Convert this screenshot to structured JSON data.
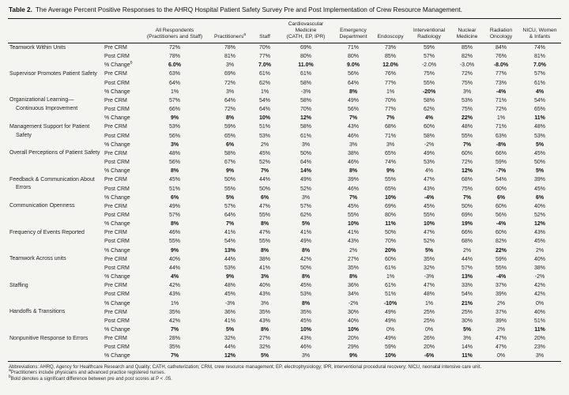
{
  "title": {
    "label": "Table 2.",
    "caption": "The Average Percent Positive Responses to the AHRQ Hospital Patient Safety Survey Pre and Post Implementation of Crew Resource Management."
  },
  "chart_data": {
    "type": "table",
    "columns": [
      {
        "lines": [
          "All Respondents",
          "(Practitioners and Staff)"
        ]
      },
      {
        "lines": [
          "Practitioners"
        ],
        "sup": "a"
      },
      {
        "lines": [
          "Staff"
        ]
      },
      {
        "lines": [
          "Cardiovascular Medicine",
          "(CATH, EP, IPR)"
        ]
      },
      {
        "lines": [
          "Emergency",
          "Department"
        ]
      },
      {
        "lines": [
          "Endoscopy"
        ]
      },
      {
        "lines": [
          "Interventional",
          "Radiology"
        ]
      },
      {
        "lines": [
          "Nuclear",
          "Medicine"
        ]
      },
      {
        "lines": [
          "Radiation",
          "Oncology"
        ]
      },
      {
        "lines": [
          "NICU, Women",
          "& Infants"
        ]
      }
    ],
    "groups": [
      {
        "category": "Teamwork Within Units",
        "rows": [
          {
            "measure": "Pre CRM",
            "values": [
              "72%",
              "78%",
              "70%",
              "69%",
              "71%",
              "73%",
              "59%",
              "85%",
              "84%",
              "74%"
            ]
          },
          {
            "measure": "Post CRM",
            "values": [
              "78%",
              "81%",
              "77%",
              "80%",
              "80%",
              "85%",
              "57%",
              "82%",
              "76%",
              "81%"
            ]
          },
          {
            "measure": "% Change",
            "measure_sup": "b",
            "values": [
              "6.0%",
              "3%",
              "7.0%",
              "11.0%",
              "9.0%",
              "12.0%",
              "-2.0%",
              "-3.0%",
              "-8.0%",
              "7.0%"
            ],
            "bold": [
              1,
              0,
              1,
              1,
              1,
              1,
              0,
              0,
              1,
              1
            ]
          }
        ]
      },
      {
        "category": "Supervisor Promotes Patient Safety",
        "rows": [
          {
            "measure": "Pre CRM",
            "values": [
              "63%",
              "69%",
              "61%",
              "61%",
              "56%",
              "76%",
              "75%",
              "72%",
              "77%",
              "57%"
            ]
          },
          {
            "measure": "Post CRM",
            "values": [
              "64%",
              "72%",
              "62%",
              "58%",
              "64%",
              "77%",
              "55%",
              "75%",
              "73%",
              "61%"
            ]
          },
          {
            "measure": "% Change",
            "values": [
              "1%",
              "3%",
              "1%",
              "-3%",
              "8%",
              "1%",
              "-20%",
              "3%",
              "-4%",
              "4%"
            ],
            "bold": [
              0,
              0,
              0,
              0,
              1,
              0,
              1,
              0,
              1,
              1
            ]
          }
        ]
      },
      {
        "category": "Organizational Learning—Continuous Improvement",
        "rows": [
          {
            "measure": "Pre CRM",
            "values": [
              "57%",
              "64%",
              "54%",
              "58%",
              "49%",
              "70%",
              "58%",
              "53%",
              "71%",
              "54%"
            ]
          },
          {
            "measure": "Post CRM",
            "values": [
              "66%",
              "72%",
              "64%",
              "70%",
              "56%",
              "77%",
              "62%",
              "75%",
              "72%",
              "65%"
            ]
          },
          {
            "measure": "% Change",
            "values": [
              "9%",
              "8%",
              "10%",
              "12%",
              "7%",
              "7%",
              "4%",
              "22%",
              "1%",
              "11%"
            ],
            "bold": [
              1,
              1,
              1,
              1,
              1,
              1,
              1,
              1,
              0,
              1
            ]
          }
        ]
      },
      {
        "category": "Management Support for Patient Safety",
        "rows": [
          {
            "measure": "Pre CRM",
            "values": [
              "53%",
              "59%",
              "51%",
              "58%",
              "43%",
              "68%",
              "60%",
              "48%",
              "71%",
              "48%"
            ]
          },
          {
            "measure": "Post CRM",
            "values": [
              "56%",
              "65%",
              "53%",
              "61%",
              "46%",
              "71%",
              "58%",
              "55%",
              "63%",
              "53%"
            ]
          },
          {
            "measure": "% Change",
            "values": [
              "3%",
              "6%",
              "2%",
              "3%",
              "3%",
              "3%",
              "-2%",
              "7%",
              "-8%",
              "5%"
            ],
            "bold": [
              1,
              1,
              0,
              0,
              0,
              0,
              0,
              1,
              1,
              1
            ]
          }
        ]
      },
      {
        "category": "Overall Perceptions of Patient Safety",
        "rows": [
          {
            "measure": "Pre CRM",
            "values": [
              "48%",
              "58%",
              "45%",
              "50%",
              "38%",
              "65%",
              "49%",
              "60%",
              "66%",
              "45%"
            ]
          },
          {
            "measure": "Post CRM",
            "values": [
              "56%",
              "67%",
              "52%",
              "64%",
              "46%",
              "74%",
              "53%",
              "72%",
              "59%",
              "50%"
            ]
          },
          {
            "measure": "% Change",
            "values": [
              "8%",
              "9%",
              "7%",
              "14%",
              "8%",
              "9%",
              "4%",
              "12%",
              "-7%",
              "5%"
            ],
            "bold": [
              1,
              1,
              1,
              1,
              1,
              1,
              0,
              1,
              1,
              1
            ]
          }
        ]
      },
      {
        "category": "Feedback & Communication About Errors",
        "rows": [
          {
            "measure": "Pre CRM",
            "values": [
              "45%",
              "50%",
              "44%",
              "49%",
              "39%",
              "55%",
              "47%",
              "68%",
              "54%",
              "39%"
            ]
          },
          {
            "measure": "Post CRM",
            "values": [
              "51%",
              "55%",
              "50%",
              "52%",
              "46%",
              "65%",
              "43%",
              "75%",
              "60%",
              "45%"
            ]
          },
          {
            "measure": "% Change",
            "values": [
              "6%",
              "5%",
              "6%",
              "3%",
              "7%",
              "10%",
              "-4%",
              "7%",
              "6%",
              "6%"
            ],
            "bold": [
              1,
              1,
              1,
              0,
              1,
              1,
              1,
              1,
              1,
              1
            ]
          }
        ]
      },
      {
        "category": "Communication Openness",
        "rows": [
          {
            "measure": "Pre CRM",
            "values": [
              "49%",
              "57%",
              "47%",
              "57%",
              "45%",
              "69%",
              "45%",
              "50%",
              "60%",
              "40%"
            ]
          },
          {
            "measure": "Post CRM",
            "values": [
              "57%",
              "64%",
              "55%",
              "62%",
              "55%",
              "80%",
              "55%",
              "69%",
              "56%",
              "52%"
            ]
          },
          {
            "measure": "% Change",
            "values": [
              "8%",
              "7%",
              "8%",
              "5%",
              "10%",
              "11%",
              "10%",
              "19%",
              "-4%",
              "12%"
            ],
            "bold": [
              1,
              1,
              1,
              1,
              1,
              1,
              1,
              1,
              1,
              1
            ]
          }
        ]
      },
      {
        "category": "Frequency of Events Reported",
        "rows": [
          {
            "measure": "Pre CRM",
            "values": [
              "46%",
              "41%",
              "47%",
              "41%",
              "41%",
              "50%",
              "47%",
              "66%",
              "60%",
              "43%"
            ]
          },
          {
            "measure": "Post CRM",
            "values": [
              "55%",
              "54%",
              "55%",
              "49%",
              "43%",
              "70%",
              "52%",
              "68%",
              "82%",
              "45%"
            ]
          },
          {
            "measure": "% Change",
            "values": [
              "9%",
              "13%",
              "8%",
              "8%",
              "2%",
              "20%",
              "5%",
              "2%",
              "22%",
              "2%"
            ],
            "bold": [
              1,
              1,
              1,
              1,
              0,
              1,
              1,
              0,
              1,
              0
            ]
          }
        ]
      },
      {
        "category": "Teamwork Across units",
        "rows": [
          {
            "measure": "Pre CRM",
            "values": [
              "40%",
              "44%",
              "38%",
              "42%",
              "27%",
              "60%",
              "35%",
              "44%",
              "59%",
              "40%"
            ]
          },
          {
            "measure": "Post CRM",
            "values": [
              "44%",
              "53%",
              "41%",
              "50%",
              "35%",
              "61%",
              "32%",
              "57%",
              "55%",
              "38%"
            ]
          },
          {
            "measure": "% Change",
            "values": [
              "4%",
              "9%",
              "3%",
              "8%",
              "8%",
              "1%",
              "-3%",
              "13%",
              "-4%",
              "-2%"
            ],
            "bold": [
              1,
              1,
              1,
              1,
              1,
              0,
              0,
              1,
              1,
              0
            ]
          }
        ]
      },
      {
        "category": "Staffing",
        "rows": [
          {
            "measure": "Pre CRM",
            "values": [
              "42%",
              "48%",
              "40%",
              "45%",
              "36%",
              "61%",
              "47%",
              "33%",
              "37%",
              "42%"
            ]
          },
          {
            "measure": "Post CRM",
            "values": [
              "43%",
              "45%",
              "43%",
              "53%",
              "34%",
              "51%",
              "48%",
              "54%",
              "39%",
              "42%"
            ]
          },
          {
            "measure": "% Change",
            "values": [
              "1%",
              "-3%",
              "3%",
              "8%",
              "-2%",
              "-10%",
              "1%",
              "21%",
              "2%",
              "0%"
            ],
            "bold": [
              0,
              0,
              0,
              1,
              0,
              1,
              0,
              1,
              0,
              0
            ]
          }
        ]
      },
      {
        "category": "Handoffs & Transitions",
        "rows": [
          {
            "measure": "Pre CRM",
            "values": [
              "35%",
              "36%",
              "35%",
              "35%",
              "30%",
              "49%",
              "25%",
              "25%",
              "37%",
              "40%"
            ]
          },
          {
            "measure": "Post CRM",
            "values": [
              "42%",
              "41%",
              "43%",
              "45%",
              "40%",
              "49%",
              "25%",
              "30%",
              "39%",
              "51%"
            ]
          },
          {
            "measure": "% Change",
            "values": [
              "7%",
              "5%",
              "8%",
              "10%",
              "10%",
              "0%",
              "0%",
              "5%",
              "2%",
              "11%"
            ],
            "bold": [
              1,
              1,
              1,
              1,
              1,
              0,
              0,
              1,
              0,
              1
            ]
          }
        ]
      },
      {
        "category": "Nonpunitive Response to Errors",
        "rows": [
          {
            "measure": "Pre CRM",
            "values": [
              "28%",
              "32%",
              "27%",
              "43%",
              "20%",
              "49%",
              "26%",
              "3%",
              "47%",
              "20%"
            ]
          },
          {
            "measure": "Post CRM",
            "values": [
              "35%",
              "44%",
              "32%",
              "46%",
              "29%",
              "59%",
              "20%",
              "14%",
              "47%",
              "23%"
            ]
          },
          {
            "measure": "% Change",
            "values": [
              "7%",
              "12%",
              "5%",
              "3%",
              "9%",
              "10%",
              "-6%",
              "11%",
              "0%",
              "3%"
            ],
            "bold": [
              1,
              1,
              1,
              0,
              1,
              1,
              1,
              1,
              0,
              0
            ]
          }
        ]
      }
    ]
  },
  "footnotes": {
    "abbreviations": "Abbreviations: AHRQ, Agency for Healthcare Research and Quality; CATH, catheterization; CRM, crew resource management; EP, electrophysiology; IPR, interventional procedural recovery; NICU, neonatal intensive care unit.",
    "a_marker": "a",
    "a_text": "Practitioners include physicians and advanced practice registered nurses.",
    "b_marker": "b",
    "b_text": "Bold denotes a significant difference between pre and post scores at P < .05."
  }
}
